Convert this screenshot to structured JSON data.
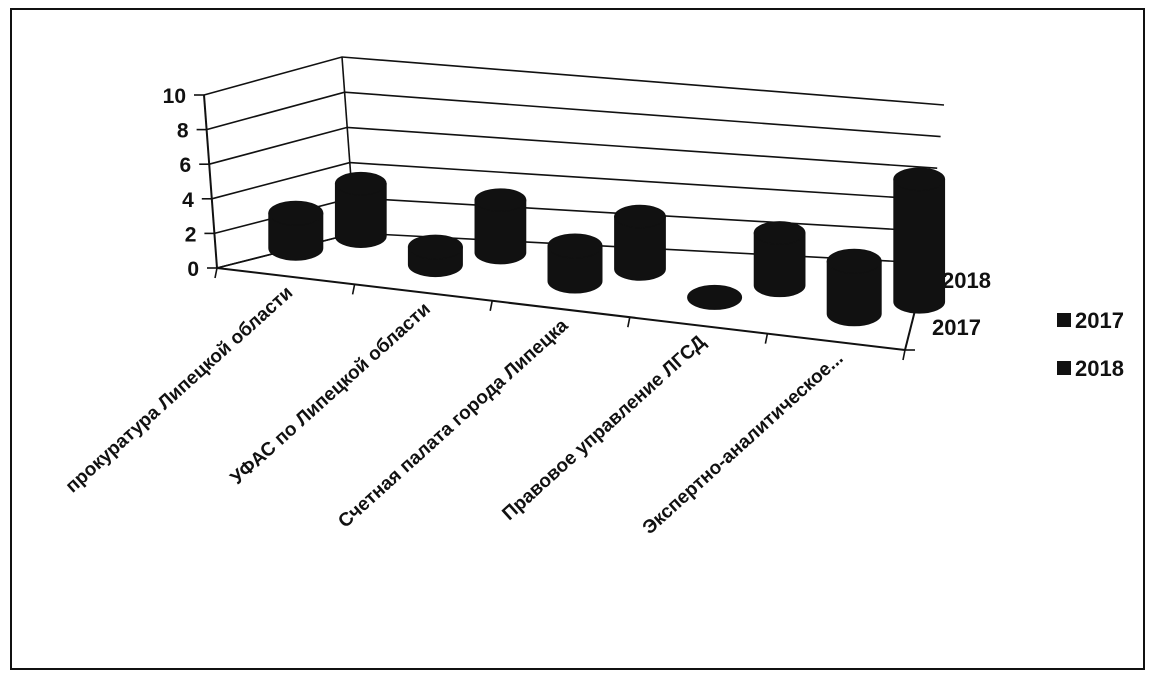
{
  "chart_data": {
    "type": "bar",
    "subtype": "3d-cylinder",
    "categories": [
      "прокуратура Липецкой области",
      "УФАС по Липецкой области",
      "Счетная палата города Липецка",
      "Правовое управление ЛГСД",
      "Экспертно-аналитическое..."
    ],
    "series": [
      {
        "name": "2017",
        "values": [
          2,
          1,
          2,
          0,
          3
        ]
      },
      {
        "name": "2018",
        "values": [
          3,
          3,
          3,
          3,
          7
        ]
      }
    ],
    "depth_labels": [
      "2018",
      "2017"
    ],
    "y_ticks": [
      "0",
      "2",
      "4",
      "6",
      "8",
      "10"
    ],
    "ylim": [
      0,
      10
    ],
    "grid": true,
    "legend_position": "right",
    "colors": {
      "bars": "#111111",
      "lines": "#111111",
      "background": "#ffffff"
    }
  }
}
